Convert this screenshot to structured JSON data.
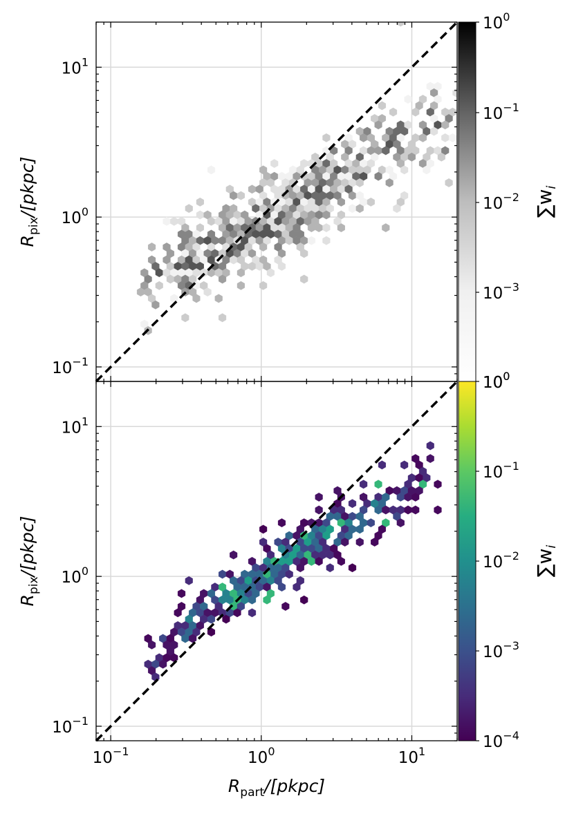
{
  "chart_data": [
    {
      "type": "heatmap",
      "subtype": "hexbin",
      "panel": "top",
      "colormap": "greys",
      "x_scale": "log",
      "y_scale": "log",
      "xlim": [
        0.08,
        20
      ],
      "ylim": [
        0.08,
        20
      ],
      "grid": true,
      "reference_line": "y = x (black dashed)",
      "y_ticks": [
        {
          "base": "10",
          "exp": "1"
        },
        {
          "base": "10",
          "exp": "0"
        },
        {
          "base": "10",
          "exp": "−1"
        }
      ],
      "y_ticks_note": "1",
      "ylabel": {
        "sym": "R",
        "sub": "pix",
        "unit": "/[pkpc]"
      },
      "colorbar": {
        "label": "∑w",
        "label_sub": "i",
        "ticks": [
          {
            "base": "10",
            "exp": "0"
          },
          {
            "base": "10",
            "exp": "−1"
          },
          {
            "base": "10",
            "exp": "−2"
          },
          {
            "base": "10",
            "exp": "−3"
          },
          {
            "base": "10",
            "exp": "0"
          }
        ]
      },
      "distribution": {
        "description": "hex bins clustered around the 1:1 line, shallower slope",
        "x_range": [
          0.15,
          20
        ],
        "y_range": [
          0.25,
          11
        ],
        "relation": [
          [
            0.2,
            0.4
          ],
          [
            0.5,
            0.6
          ],
          [
            1.0,
            0.9
          ],
          [
            2.0,
            1.3
          ],
          [
            4.0,
            2.0
          ],
          [
            8.0,
            2.8
          ],
          [
            13.0,
            4.0
          ]
        ]
      }
    },
    {
      "type": "heatmap",
      "subtype": "hexbin",
      "panel": "bottom",
      "colormap": "viridis",
      "x_scale": "log",
      "y_scale": "log",
      "xlim": [
        0.08,
        20
      ],
      "ylim": [
        0.08,
        20
      ],
      "grid": true,
      "reference_line": "y = x (black dashed)",
      "x_ticks": [
        {
          "base": "10",
          "exp": "−1"
        },
        {
          "base": "10",
          "exp": "0"
        },
        {
          "base": "10",
          "exp": "1"
        }
      ],
      "y_ticks": [
        {
          "base": "10",
          "exp": "1"
        },
        {
          "base": "10",
          "exp": "0"
        },
        {
          "base": "10",
          "exp": "−1"
        }
      ],
      "xlabel": {
        "sym": "R",
        "sub": "part",
        "unit": "/[pkpc]"
      },
      "ylabel": {
        "sym": "R",
        "sub": "pix",
        "unit": "/[pkpc]"
      },
      "colorbar": {
        "label": "∑w",
        "label_sub": "i",
        "ticks": [
          {
            "base": "10",
            "exp": "−1"
          },
          {
            "base": "10",
            "exp": "−2"
          },
          {
            "base": "10",
            "exp": "−3"
          },
          {
            "base": "10",
            "exp": "−4"
          }
        ]
      },
      "distribution": {
        "description": "hex bins in a tighter band, crossing the 1:1 line near x=1",
        "x_range": [
          0.17,
          16
        ],
        "y_range": [
          0.23,
          7
        ],
        "relation": [
          [
            0.2,
            0.3
          ],
          [
            0.4,
            0.6
          ],
          [
            1.0,
            1.0
          ],
          [
            2.0,
            1.6
          ],
          [
            4.0,
            2.4
          ],
          [
            8.0,
            3.2
          ],
          [
            13.0,
            5.0
          ]
        ]
      }
    }
  ]
}
